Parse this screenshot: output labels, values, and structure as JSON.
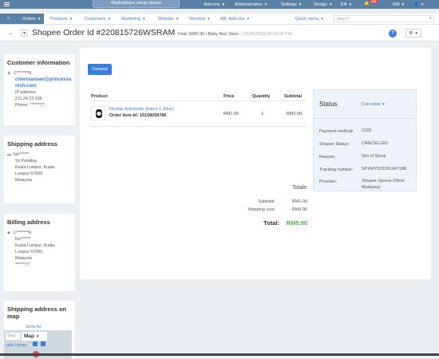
{
  "topbar": {
    "setup_wizard": "Marketplace setup wizard",
    "addons": "Add-ons",
    "administration": "Administration",
    "settings": "Settings",
    "design": "Design",
    "language": "EN",
    "notifications_count": "635",
    "currency": "RM",
    "user_icon": "user-icon"
  },
  "nav": {
    "orders": "Orders",
    "products": "Products",
    "customers": "Customers",
    "marketing": "Marketing",
    "website": "Website",
    "vendors": "Vendors",
    "ab_addons": "AB: Add-ons",
    "quick_menu": "Quick menu",
    "search_placeholder": "Search"
  },
  "page": {
    "title": "Shopee Order Id #220815726WSRAM",
    "total": "Total: RM5.90 / Baby Boo Store",
    "date": "/ 15/08/2022,02:18:04 PM"
  },
  "customer": {
    "heading": "Customer information",
    "name": "C*******N",
    "email": "chiensansan@princessanish.com",
    "ip_label": "IP address:",
    "ip": "211.24.72.106",
    "phone": "Phone: ******77"
  },
  "shipping": {
    "heading": "Shipping address",
    "lines": [
      "No******",
      "Sri Petaling",
      "Kuala Lumpur, Kuala",
      "Lumpur 57000",
      "Malaysia"
    ]
  },
  "billing": {
    "heading": "Billing address",
    "lines": [
      "C*******N",
      "No******",
      "Kuala Lumpur, Kuala",
      "Lumpur 57000",
      "Malaysia",
      "******77"
    ]
  },
  "map": {
    "heading_1": "Shipping address on",
    "heading_2": "map",
    "link": "Show Ad",
    "search": "Sear",
    "mode": "Map",
    "city": "uala Lumpu"
  },
  "main": {
    "tab_general": "General",
    "columns": [
      "Product",
      "Price",
      "Quantity",
      "Subtotal"
    ],
    "item": {
      "name": "Nicolas Automatic Watch 1 (blue)",
      "item_id": "Order Item-Id: 15159059786",
      "price": "RM1.00",
      "quantity": "1",
      "subtotal": "RM1.00"
    },
    "totals_heading": "Totals",
    "subtotal_label": "Subtotal:",
    "subtotal_value": "RM1.00",
    "shipping_label": "Shipping cost:",
    "shipping_value": "RM4.90",
    "total_label": "Total:",
    "total_value": "RM5.90"
  },
  "status": {
    "heading": "Status",
    "value": "Canceled",
    "payment_label": "Payment method:",
    "payment_value": "COD",
    "shopee_label": "Shopee Status:",
    "shopee_value": "CANCELLED",
    "reason_label": "Reason:",
    "reason_value": "Out of Stock",
    "tracking_label": "Tracking number:",
    "tracking_value": "SPXMY023391947188",
    "provider_label": "Provider:",
    "provider_value": "Shopee Xpress (West Malaysia)"
  },
  "colors": {
    "topbar": "#5b80a6",
    "accent": "#3b7dd8",
    "total_green": "#4caf50",
    "status_panel": "#eef3f9"
  }
}
